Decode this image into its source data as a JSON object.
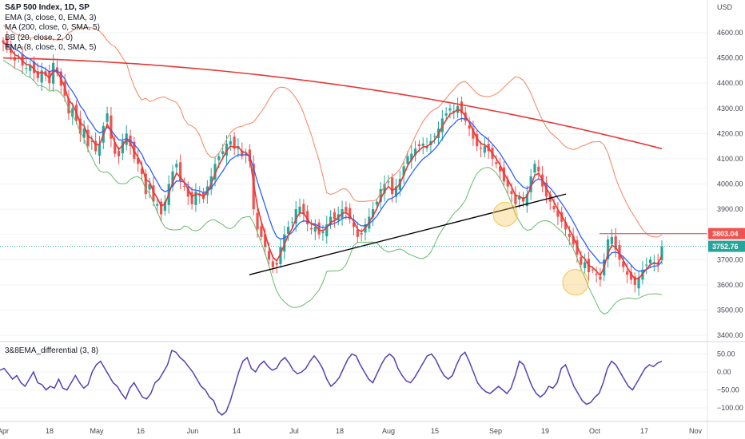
{
  "legend": {
    "title": "S&P 500 Index, 1D, SP",
    "lines": [
      "EMA (3, close, 0, EMA, 3)",
      "MA (200, close, 0, SMA, 5)",
      "BB (20, close, 2, 0)",
      "EMA (8, close, 0, SMA, 5)"
    ]
  },
  "oscillator_label": "3&8EMA_differential (3, 8)",
  "currency": "USD",
  "price_labels": {
    "resistance": "3803.04",
    "last": "3752.76"
  },
  "colors": {
    "up": "#26a69a",
    "down": "#ef5350",
    "ema3": "#e53935",
    "ema8": "#2962ff",
    "ma200": "#e53935",
    "bb_upper": "#f4845f",
    "bb_lower": "#66bb6a",
    "oscillator": "#5b3fb4",
    "trendline": "#000000",
    "highlight": "#f6c453"
  },
  "chart_data": [
    {
      "type": "candlestick",
      "title": "S&P 500 Index, 1D, SP",
      "ylabel": "USD",
      "ylim": [
        3400,
        4700
      ],
      "y_ticks": [
        3400,
        3500,
        3600,
        3700,
        3800,
        3900,
        4000,
        4100,
        4200,
        4300,
        4400,
        4500,
        4600
      ],
      "x_ticks": [
        "Apr",
        "18",
        "May",
        "16",
        "Jun",
        "14",
        "Jul",
        "18",
        "Aug",
        "15",
        "Sep",
        "19",
        "Oct",
        "17",
        "Nov"
      ],
      "ohlc_close": [
        4560,
        4540,
        4520,
        4490,
        4500,
        4470,
        4460,
        4470,
        4440,
        4420,
        4450,
        4430,
        4400,
        4480,
        4440,
        4390,
        4350,
        4280,
        4300,
        4250,
        4200,
        4220,
        4150,
        4170,
        4130,
        4160,
        4230,
        4280,
        4180,
        4120,
        4110,
        4170,
        4200,
        4150,
        4100,
        4080,
        4040,
        3960,
        4000,
        3930,
        3920,
        3880,
        3930,
        4000,
        4050,
        4080,
        4010,
        3990,
        3950,
        3920,
        3970,
        3960,
        3940,
        3990,
        4030,
        4080,
        4110,
        4130,
        4160,
        4170,
        4140,
        4150,
        4110,
        4120,
        4090,
        3900,
        3820,
        3790,
        3750,
        3700,
        3670,
        3680,
        3750,
        3800,
        3830,
        3850,
        3900,
        3910,
        3880,
        3840,
        3820,
        3830,
        3800,
        3810,
        3840,
        3870,
        3860,
        3880,
        3900,
        3890,
        3860,
        3830,
        3790,
        3800,
        3840,
        3870,
        3900,
        3930,
        3980,
        4000,
        4010,
        3960,
        3990,
        4020,
        4070,
        4110,
        4120,
        4140,
        4150,
        4160,
        4150,
        4170,
        4190,
        4220,
        4260,
        4280,
        4300,
        4290,
        4310,
        4280,
        4250,
        4220,
        4180,
        4150,
        4140,
        4150,
        4130,
        4100,
        4080,
        4050,
        4010,
        3990,
        3960,
        3920,
        3950,
        3930,
        3960,
        4030,
        4080,
        4050,
        3990,
        3950,
        3930,
        3900,
        3870,
        3850,
        3820,
        3790,
        3760,
        3720,
        3680,
        3690,
        3650,
        3660,
        3640,
        3620,
        3700,
        3780,
        3790,
        3740,
        3700,
        3670,
        3640,
        3620,
        3600,
        3630,
        3660,
        3680,
        3700,
        3690,
        3680,
        3752.76
      ],
      "series": [
        {
          "name": "EMA (3, close, 0, EMA, 3)"
        },
        {
          "name": "MA (200, close, 0, SMA, 5)",
          "values_start_end": [
            4500,
            4140
          ]
        },
        {
          "name": "BB (20, close, 2, 0)"
        },
        {
          "name": "EMA (8, close, 0, SMA, 5)"
        }
      ],
      "annotations": [
        {
          "type": "trendline",
          "from": [
            3640,
            "Jun 16"
          ],
          "to": [
            3960,
            "Sep 27"
          ]
        },
        {
          "type": "horizontal_line",
          "value": 3803.04,
          "label": "3803.04"
        },
        {
          "type": "last_price",
          "value": 3752.76,
          "label": "3752.76"
        },
        {
          "type": "circle_highlight",
          "near": 3890,
          "at": "Sep 2"
        },
        {
          "type": "circle_highlight",
          "near": 3640,
          "at": "Sep 27"
        }
      ]
    },
    {
      "type": "line",
      "title": "3&8EMA_differential (3, 8)",
      "ylim": [
        -125,
        75
      ],
      "y_ticks": [
        50,
        0,
        -50,
        -100
      ],
      "y_tick_labels": [
        "50.00",
        "0.00",
        "−50.00",
        "−100.00"
      ],
      "series": [
        {
          "name": "3&8EMA_differential (3, 8)",
          "values": [
            5,
            10,
            -5,
            -20,
            -10,
            -30,
            -40,
            -20,
            0,
            -30,
            -35,
            -50,
            -40,
            -45,
            -20,
            -45,
            -50,
            -30,
            -10,
            -30,
            -45,
            -35,
            0,
            20,
            30,
            10,
            -10,
            -30,
            -40,
            -60,
            -75,
            -45,
            -30,
            -50,
            -70,
            -75,
            -60,
            -30,
            -20,
            0,
            20,
            60,
            55,
            40,
            30,
            15,
            0,
            -20,
            -40,
            -50,
            -70,
            -80,
            -110,
            -120,
            -110,
            -80,
            -40,
            0,
            30,
            40,
            10,
            0,
            20,
            30,
            15,
            5,
            10,
            30,
            40,
            25,
            5,
            -5,
            0,
            10,
            30,
            45,
            30,
            10,
            -20,
            -40,
            -30,
            -15,
            10,
            35,
            50,
            45,
            20,
            0,
            -20,
            -30,
            -5,
            20,
            40,
            50,
            40,
            10,
            -10,
            -25,
            -30,
            -15,
            5,
            25,
            45,
            50,
            35,
            10,
            -10,
            -20,
            -10,
            20,
            45,
            55,
            30,
            0,
            -30,
            -45,
            -55,
            -60,
            -50,
            -40,
            -50,
            -60,
            -45,
            -10,
            30,
            20,
            -10,
            -40,
            -60,
            -70,
            -60,
            -40,
            -45,
            -30,
            10,
            20,
            -10,
            -40,
            -60,
            -80,
            -90,
            -85,
            -70,
            -60,
            -30,
            10,
            30,
            20,
            0,
            -20,
            -40,
            -50,
            -30,
            -10,
            10,
            20,
            15,
            25,
            30
          ]
        }
      ]
    }
  ]
}
